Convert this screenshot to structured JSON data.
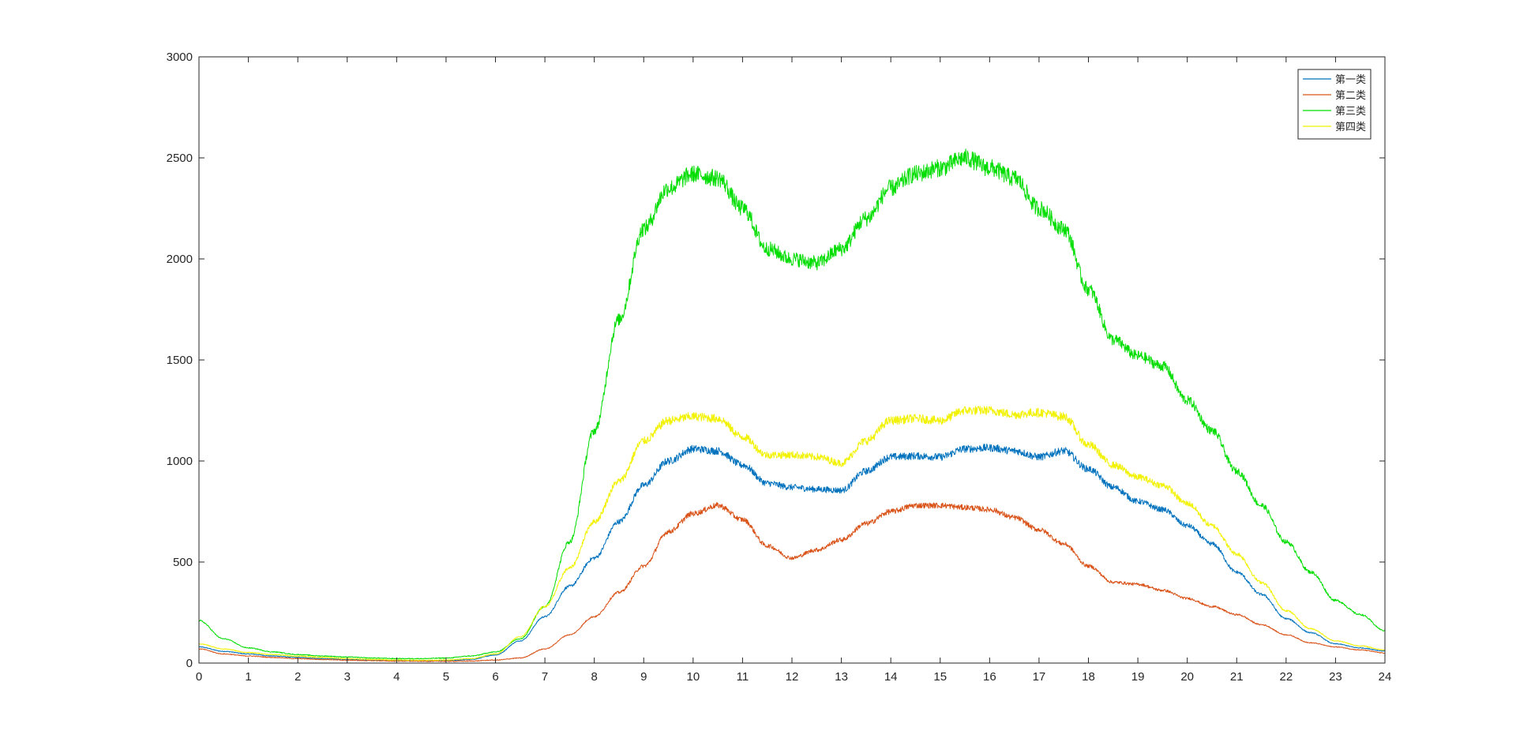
{
  "chart_data": {
    "type": "line",
    "title": "",
    "xlabel": "",
    "ylabel": "",
    "xlim": [
      0,
      24
    ],
    "ylim": [
      0,
      3000
    ],
    "xticks": [
      "0",
      "1",
      "2",
      "3",
      "4",
      "5",
      "6",
      "7",
      "8",
      "9",
      "10",
      "11",
      "12",
      "13",
      "14",
      "15",
      "16",
      "17",
      "18",
      "19",
      "20",
      "21",
      "22",
      "23",
      "24"
    ],
    "yticks": [
      "0",
      "500",
      "1000",
      "1500",
      "2000",
      "2500",
      "3000"
    ],
    "grid": false,
    "legend_location": "top-right",
    "x": [
      0,
      0.5,
      1,
      1.5,
      2,
      2.5,
      3,
      3.5,
      4,
      4.5,
      5,
      5.5,
      6,
      6.5,
      7,
      7.5,
      8,
      8.5,
      9,
      9.5,
      10,
      10.5,
      11,
      11.5,
      12,
      12.5,
      13,
      13.5,
      14,
      14.5,
      15,
      15.5,
      16,
      16.5,
      17,
      17.5,
      18,
      18.5,
      19,
      19.5,
      20,
      20.5,
      21,
      21.5,
      22,
      22.5,
      23,
      23.5,
      24
    ],
    "series": [
      {
        "name": "第一类",
        "color": "#0072BD",
        "values": [
          80,
          58,
          45,
          35,
          28,
          22,
          18,
          14,
          12,
          11,
          12,
          18,
          40,
          110,
          230,
          380,
          520,
          700,
          880,
          1000,
          1060,
          1050,
          980,
          890,
          870,
          860,
          855,
          950,
          1020,
          1025,
          1020,
          1060,
          1065,
          1050,
          1020,
          1050,
          960,
          870,
          800,
          760,
          680,
          590,
          450,
          340,
          220,
          150,
          95,
          75,
          60
        ]
      },
      {
        "name": "第二类",
        "color": "#D95319",
        "values": [
          70,
          45,
          35,
          28,
          22,
          18,
          14,
          12,
          10,
          9,
          9,
          10,
          15,
          25,
          70,
          140,
          230,
          350,
          480,
          650,
          740,
          780,
          710,
          580,
          520,
          560,
          610,
          690,
          750,
          780,
          780,
          770,
          760,
          720,
          660,
          590,
          480,
          400,
          390,
          360,
          320,
          280,
          240,
          190,
          140,
          100,
          80,
          65,
          50
        ]
      },
      {
        "name": "第三类",
        "color": "#00DD00",
        "values": [
          210,
          120,
          75,
          55,
          42,
          35,
          30,
          25,
          22,
          22,
          25,
          35,
          55,
          120,
          280,
          600,
          1150,
          1700,
          2150,
          2350,
          2420,
          2400,
          2250,
          2050,
          2000,
          1980,
          2050,
          2200,
          2350,
          2420,
          2450,
          2500,
          2450,
          2400,
          2250,
          2150,
          1850,
          1600,
          1520,
          1470,
          1300,
          1150,
          950,
          780,
          600,
          450,
          310,
          240,
          160
        ]
      },
      {
        "name": "第四类",
        "color": "#F2F200",
        "values": [
          95,
          70,
          52,
          42,
          34,
          28,
          22,
          18,
          15,
          14,
          15,
          22,
          45,
          130,
          280,
          470,
          700,
          900,
          1100,
          1200,
          1220,
          1210,
          1120,
          1030,
          1030,
          1020,
          990,
          1100,
          1200,
          1210,
          1200,
          1250,
          1250,
          1230,
          1240,
          1220,
          1080,
          980,
          920,
          880,
          790,
          680,
          540,
          400,
          260,
          170,
          110,
          85,
          65
        ]
      }
    ]
  }
}
